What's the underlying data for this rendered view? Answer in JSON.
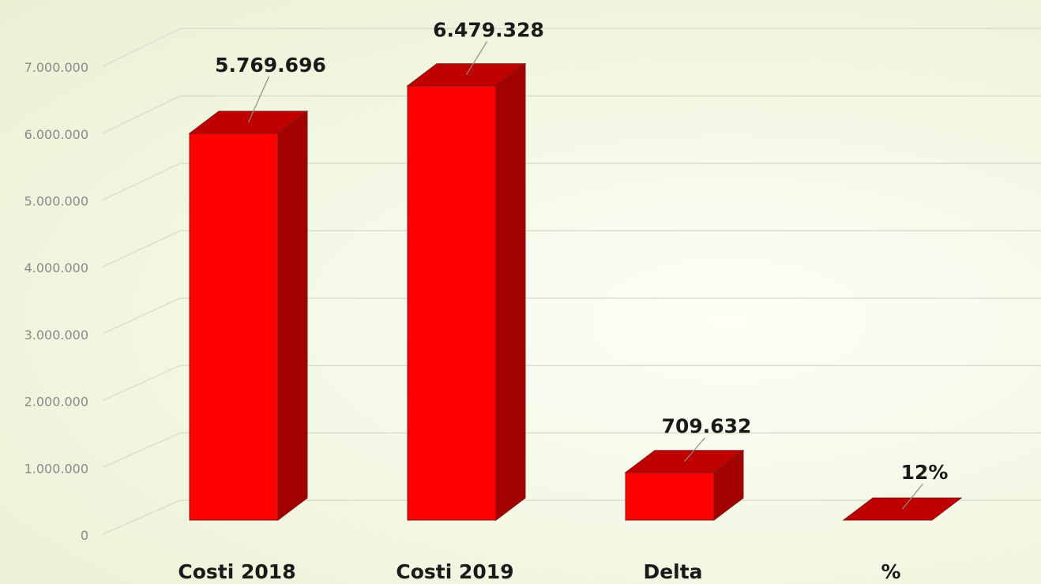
{
  "chart_data": {
    "type": "bar",
    "categories": [
      "Costi 2018",
      "Costi 2019",
      "Delta",
      "%"
    ],
    "values": [
      5769696,
      6479328,
      709632,
      0.12
    ],
    "data_labels": [
      "5.769.696",
      "6.479.328",
      "709.632",
      "12%"
    ],
    "ylim": [
      0,
      7000000
    ],
    "yticks": [
      0,
      1000000,
      2000000,
      3000000,
      4000000,
      5000000,
      6000000,
      7000000
    ],
    "ytick_labels": [
      "0",
      "1.000.000",
      "2.000.000",
      "3.000.000",
      "4.000.000",
      "5.000.000",
      "6.000.000",
      "7.000.000"
    ],
    "grid": true,
    "legend": "none",
    "colors": {
      "bar_front": "#ff0000",
      "bar_top": "#c00000",
      "bar_side": "#a30000",
      "bar_edge": "#7a1a1a"
    }
  }
}
